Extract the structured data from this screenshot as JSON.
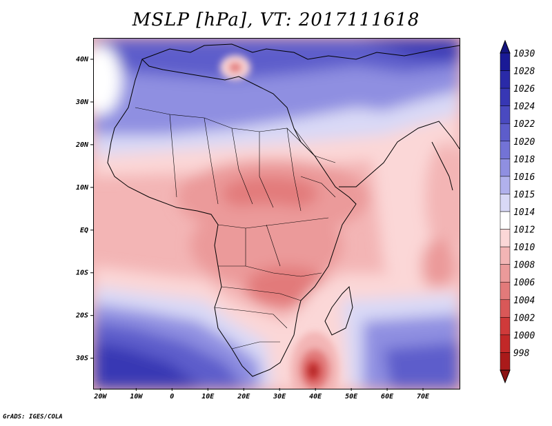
{
  "title": "MSLP [hPa], VT: 2017111618",
  "credit": "GrADS: IGES/COLA",
  "lat_labels": [
    "40N",
    "30N",
    "20N",
    "10N",
    "EQ",
    "10S",
    "20S",
    "30S"
  ],
  "lon_labels": [
    "20W",
    "10W",
    "0",
    "10E",
    "20E",
    "30E",
    "40E",
    "50E",
    "60E",
    "70E"
  ],
  "colorbar": {
    "levels": [
      "1030",
      "1028",
      "1026",
      "1024",
      "1022",
      "1020",
      "1018",
      "1016",
      "1015",
      "1014",
      "1012",
      "1010",
      "1008",
      "1006",
      "1004",
      "1002",
      "1000",
      "998"
    ],
    "colors": [
      "#1a1a96",
      "#2a2aa8",
      "#3737b4",
      "#4a4ac0",
      "#5d5dcb",
      "#7373d6",
      "#8f8fe1",
      "#b1b1ec",
      "#d9d9f6",
      "#ffffff",
      "#fbd7d7",
      "#f3b5b5",
      "#eb9a9a",
      "#e27a7a",
      "#d95858",
      "#cf3a3a",
      "#c22828",
      "#aa1a1a"
    ],
    "top_arrow_color": "#14147e",
    "bottom_arrow_color": "#8c1414"
  }
}
